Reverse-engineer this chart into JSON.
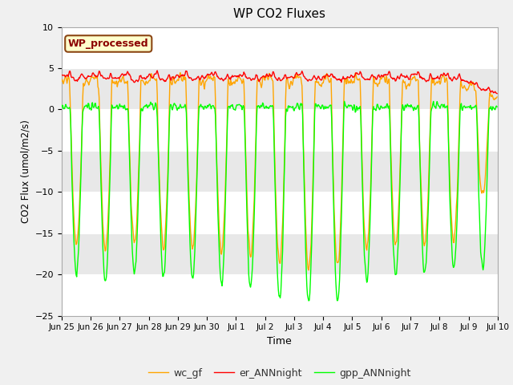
{
  "title": "WP CO2 Fluxes",
  "xlabel": "Time",
  "ylabel": "CO2 Flux (umol/m2/s)",
  "ylim": [
    -25,
    10
  ],
  "yticks": [
    -25,
    -20,
    -15,
    -10,
    -5,
    0,
    5,
    10
  ],
  "watermark": "WP_processed",
  "gpp_color": "#00FF00",
  "er_color": "#FF0000",
  "wc_color": "#FFA500",
  "legend_labels": [
    "gpp_ANNnight",
    "er_ANNnight",
    "wc_gf"
  ],
  "bg_color": "#f0f0f0",
  "plot_bg": "#ffffff",
  "band_color": "#e8e8e8",
  "line_width": 1.0,
  "seed": 42
}
